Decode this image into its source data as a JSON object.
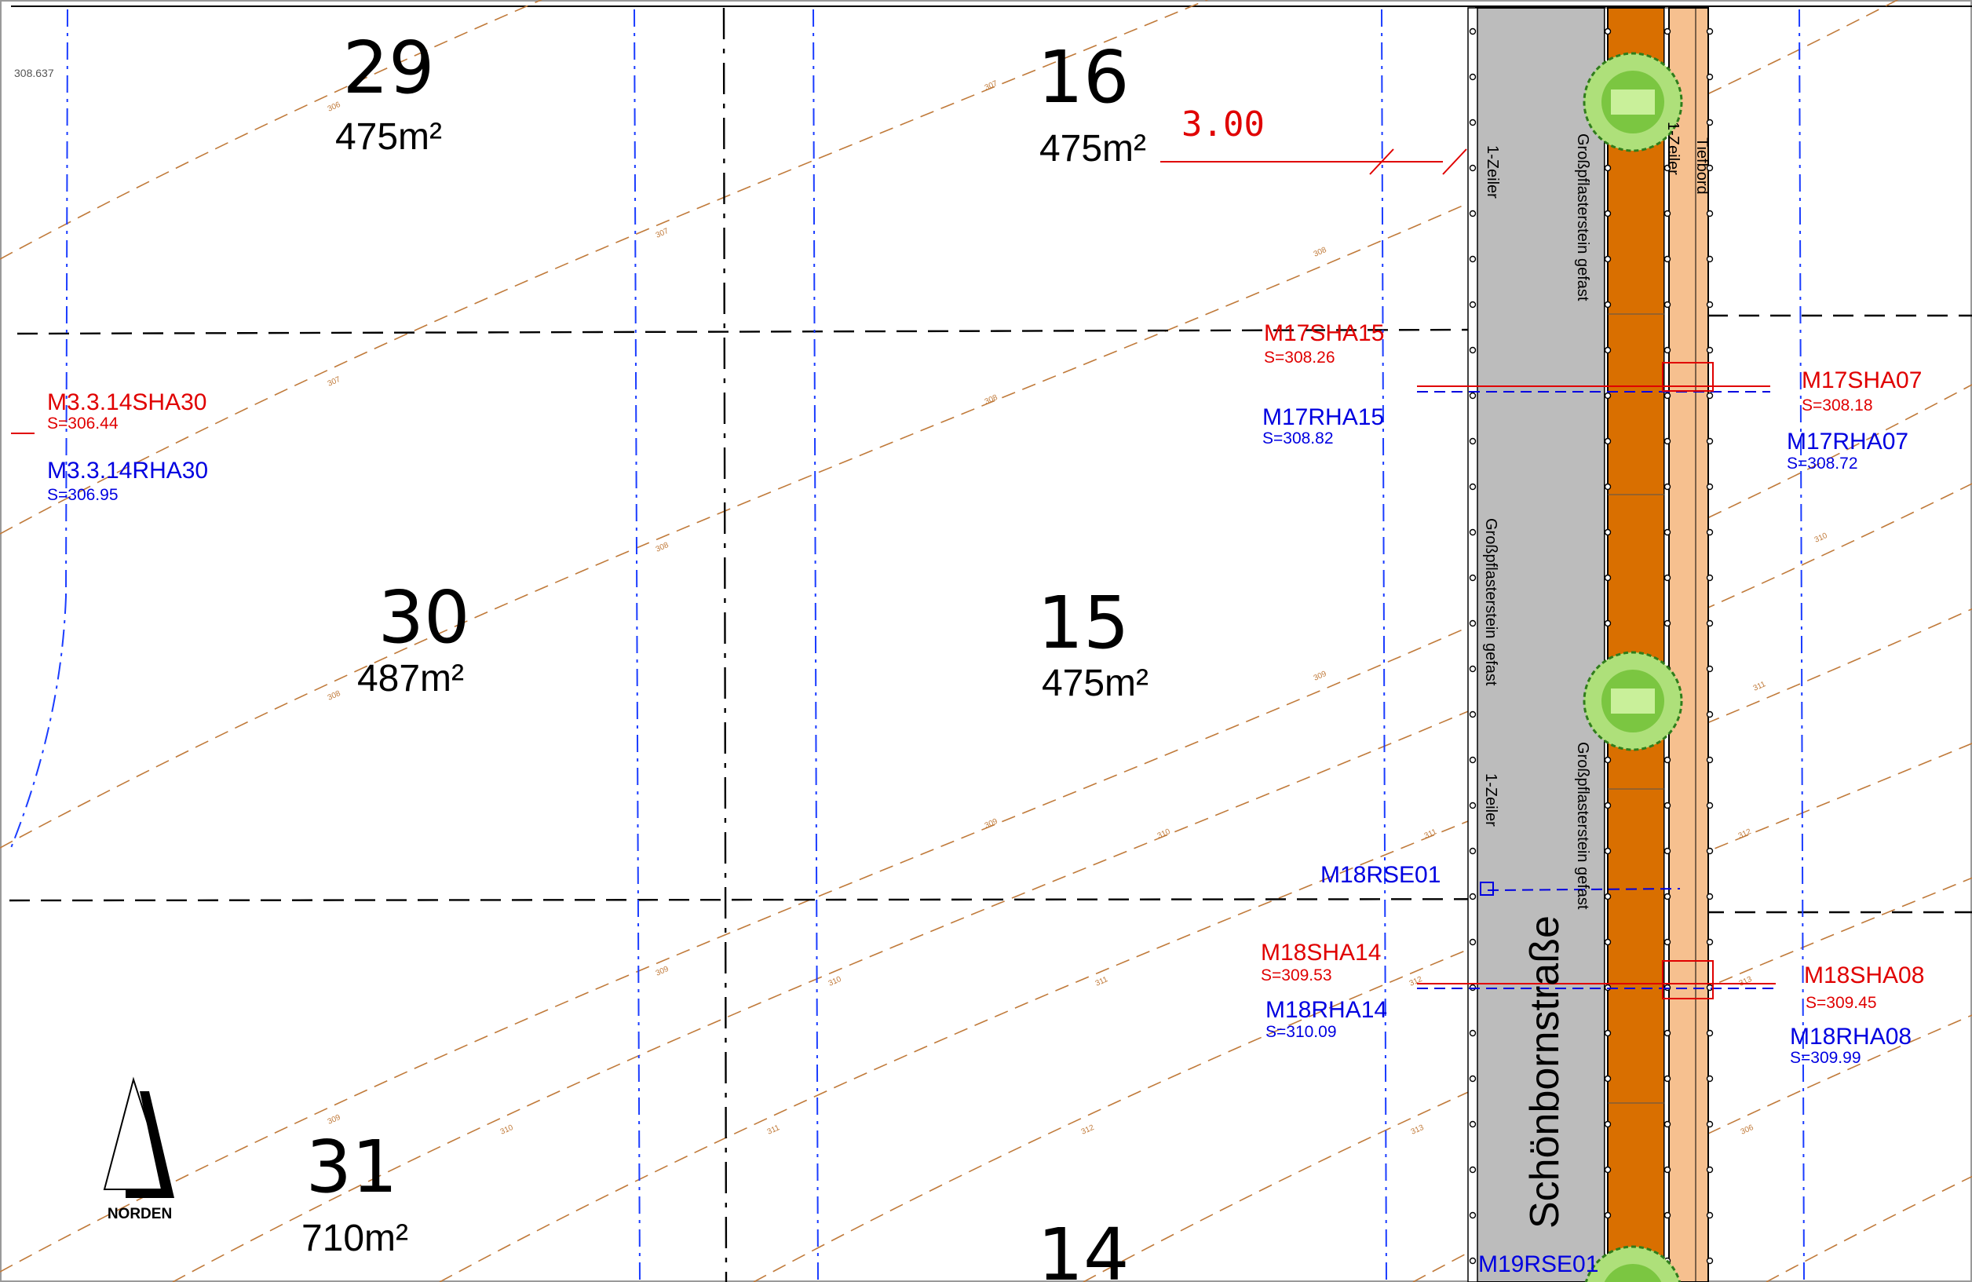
{
  "colors": {
    "contour": "#c07a3a",
    "manhole_red": "#e00000",
    "manhole_blue": "#0000e0",
    "road_grey": "#bdbdbd",
    "paving_orange": "#d96f00",
    "sidewalk_peach": "#f6c08f",
    "tree_green": "#7bc641"
  },
  "corner_label": "308.637",
  "plots": [
    {
      "number": "29",
      "area": "475m²"
    },
    {
      "number": "16",
      "area": "475m²"
    },
    {
      "number": "30",
      "area": "487m²"
    },
    {
      "number": "15",
      "area": "475m²"
    },
    {
      "number": "31",
      "area": "710m²"
    },
    {
      "number": "14",
      "area": ""
    }
  ],
  "dimension": "3.00",
  "street_name": "Schönbornstraße",
  "road_labels": {
    "row_1": "1-Zeiler",
    "row_1b": "1-Zeiler",
    "row_1c": "1-Zeiler",
    "paving": "Großpflasterstein gefast",
    "paving_b": "Großpflasterstein gefast",
    "paving_c": "Großpflasterstein gefast",
    "curb": "Tiefbord"
  },
  "manholes": {
    "m3_sha": {
      "id": "M3.3.14SHA30",
      "elev": "S=306.44"
    },
    "m3_rha": {
      "id": "M3.3.14RHA30",
      "elev": "S=306.95"
    },
    "m17sha15": {
      "id": "M17SHA15",
      "elev": "S=308.26"
    },
    "m17rha15": {
      "id": "M17RHA15",
      "elev": "S=308.82"
    },
    "m17sha07": {
      "id": "M17SHA07",
      "elev": "S=308.18"
    },
    "m17rha07": {
      "id": "M17RHA07",
      "elev": "S=308.72"
    },
    "m18rse01": {
      "id": "M18RSE01"
    },
    "m18sha14": {
      "id": "M18SHA14",
      "elev": "S=309.53"
    },
    "m18rha14": {
      "id": "M18RHA14",
      "elev": "S=310.09"
    },
    "m18sha08": {
      "id": "M18SHA08",
      "elev": "S=309.45"
    },
    "m18rha08": {
      "id": "M18RHA08",
      "elev": "S=309.99"
    },
    "m19rse01": {
      "id": "M19RSE01"
    }
  },
  "north_label": "NORDEN",
  "contour_labels": [
    "306",
    "307",
    "308",
    "309",
    "310",
    "311",
    "312",
    "313"
  ]
}
